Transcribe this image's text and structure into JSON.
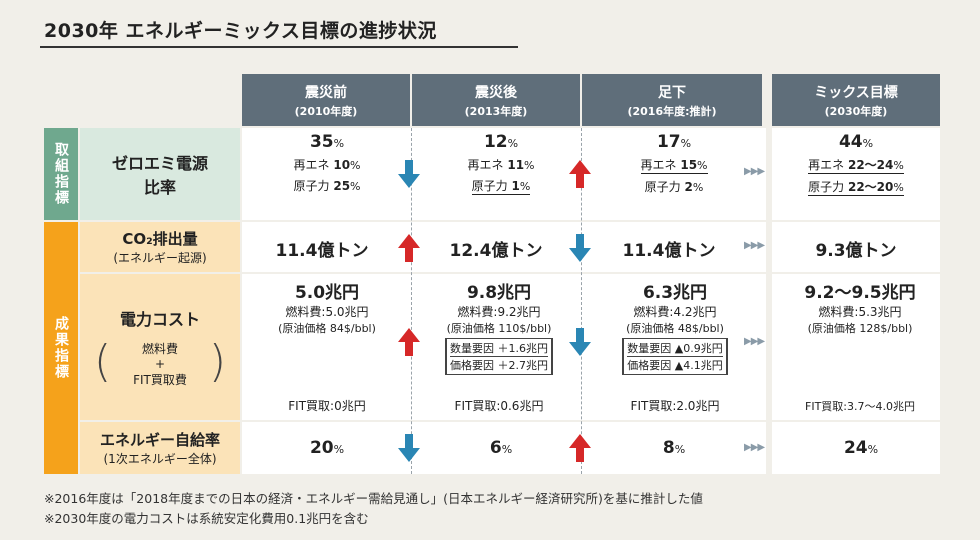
{
  "title": "2030年 エネルギーミックス目標の進捗状況",
  "colors": {
    "header": "#5f6e7a",
    "green": "#6fa88e",
    "green_light": "#d9e9df",
    "orange": "#f5a21b",
    "orange_light": "#fbe3b8",
    "up_arrow": "#d62828",
    "down_arrow": "#2a86b4"
  },
  "columns": [
    {
      "name": "震災前",
      "sub": "(2010年度)"
    },
    {
      "name": "震災後",
      "sub": "(2013年度)"
    },
    {
      "name": "足下",
      "sub": "(2016年度:推計)"
    },
    {
      "name": "ミックス目標",
      "sub": "(2030年度)"
    }
  ],
  "groups": {
    "torikumi": "取組指標",
    "seika": "成果指標"
  },
  "rows": {
    "zero_emi": {
      "label1": "ゼロエミ電源",
      "label2": "比率",
      "cells": [
        {
          "main": "35",
          "unit": "%",
          "l1": "再エネ",
          "v1": "10",
          "l2": "原子力",
          "v2": "25"
        },
        {
          "main": "12",
          "unit": "%",
          "l1": "再エネ",
          "v1": "11",
          "l2": "原子力",
          "v2": "1"
        },
        {
          "main": "17",
          "unit": "%",
          "l1": "再エネ",
          "v1": "15",
          "l2": "原子力",
          "v2": "2"
        },
        {
          "main": "44",
          "unit": "%",
          "l1": "再エネ",
          "v1": "22～24",
          "l2": "原子力",
          "v2": "22～20"
        }
      ],
      "pct": "%"
    },
    "co2": {
      "label1": "CO₂排出量",
      "label2": "(エネルギー起源)",
      "cells": [
        "11.4億トン",
        "12.4億トン",
        "11.4億トン",
        "9.3億トン"
      ]
    },
    "cost": {
      "label1": "電力コスト",
      "sub1": "燃料費",
      "sub_plus": "+",
      "sub2": "FIT買取費",
      "cells": [
        {
          "main": "5.0兆円",
          "fuel": "燃料費:5.0兆円",
          "oil": "(原油価格 84$/bbl)",
          "fit": "FIT買取:0兆円"
        },
        {
          "main": "9.8兆円",
          "fuel": "燃料費:9.2兆円",
          "oil": "(原油価格 110$/bbl)",
          "f1": "数量要因 ＋1.6兆円",
          "f2": "価格要因 ＋2.7兆円",
          "fit": "FIT買取:0.6兆円"
        },
        {
          "main": "6.3兆円",
          "fuel": "燃料費:4.2兆円",
          "oil": "(原油価格 48$/bbl)",
          "f1": "数量要因 ▲0.9兆円",
          "f2": "価格要因 ▲4.1兆円",
          "fit": "FIT買取:2.0兆円"
        },
        {
          "main": "9.2～9.5兆円",
          "fuel": "燃料費:5.3兆円",
          "oil": "(原油価格 128$/bbl)",
          "fit": "FIT買取:3.7～4.0兆円"
        }
      ]
    },
    "self": {
      "label1": "エネルギー自給率",
      "label2": "(1次エネルギー全体)",
      "cells": [
        {
          "v": "20",
          "u": "%"
        },
        {
          "v": "6",
          "u": "%"
        },
        {
          "v": "8",
          "u": "%"
        },
        {
          "v": "24",
          "u": "%"
        }
      ]
    }
  },
  "footnotes": [
    "※2016年度は「2018年度までの日本の経済・エネルギー需給見通し」(日本エネルギー経済研究所)を基に推計した値",
    "※2030年度の電力コストは系統安定化費用0.1兆円を含む"
  ]
}
